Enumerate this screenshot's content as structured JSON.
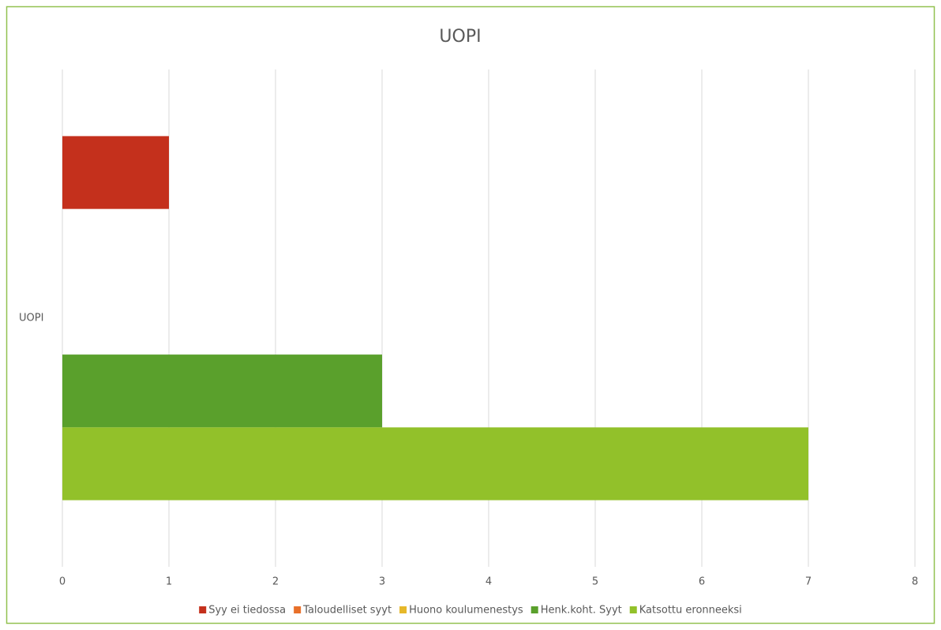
{
  "chart_data": {
    "type": "barh",
    "title": "UOPI",
    "categories": [
      "UOPI"
    ],
    "series": [
      {
        "name": "Syy ei tiedossa",
        "color": "#c4301c",
        "values": [
          1
        ]
      },
      {
        "name": "Taloudelliset syyt",
        "color": "#e8702a",
        "values": [
          0
        ]
      },
      {
        "name": "Huono koulumenestys",
        "color": "#e6b82a",
        "values": [
          0
        ]
      },
      {
        "name": "Henk.koht. Syyt",
        "color": "#5aa02c",
        "values": [
          3
        ]
      },
      {
        "name": "Katsottu eronneeksi",
        "color": "#92c12a",
        "values": [
          7
        ]
      }
    ],
    "xlim": [
      0,
      8
    ],
    "xticks": [
      0,
      1,
      2,
      3,
      4,
      5,
      6,
      7,
      8
    ],
    "grid": true,
    "legend": "bottom"
  }
}
